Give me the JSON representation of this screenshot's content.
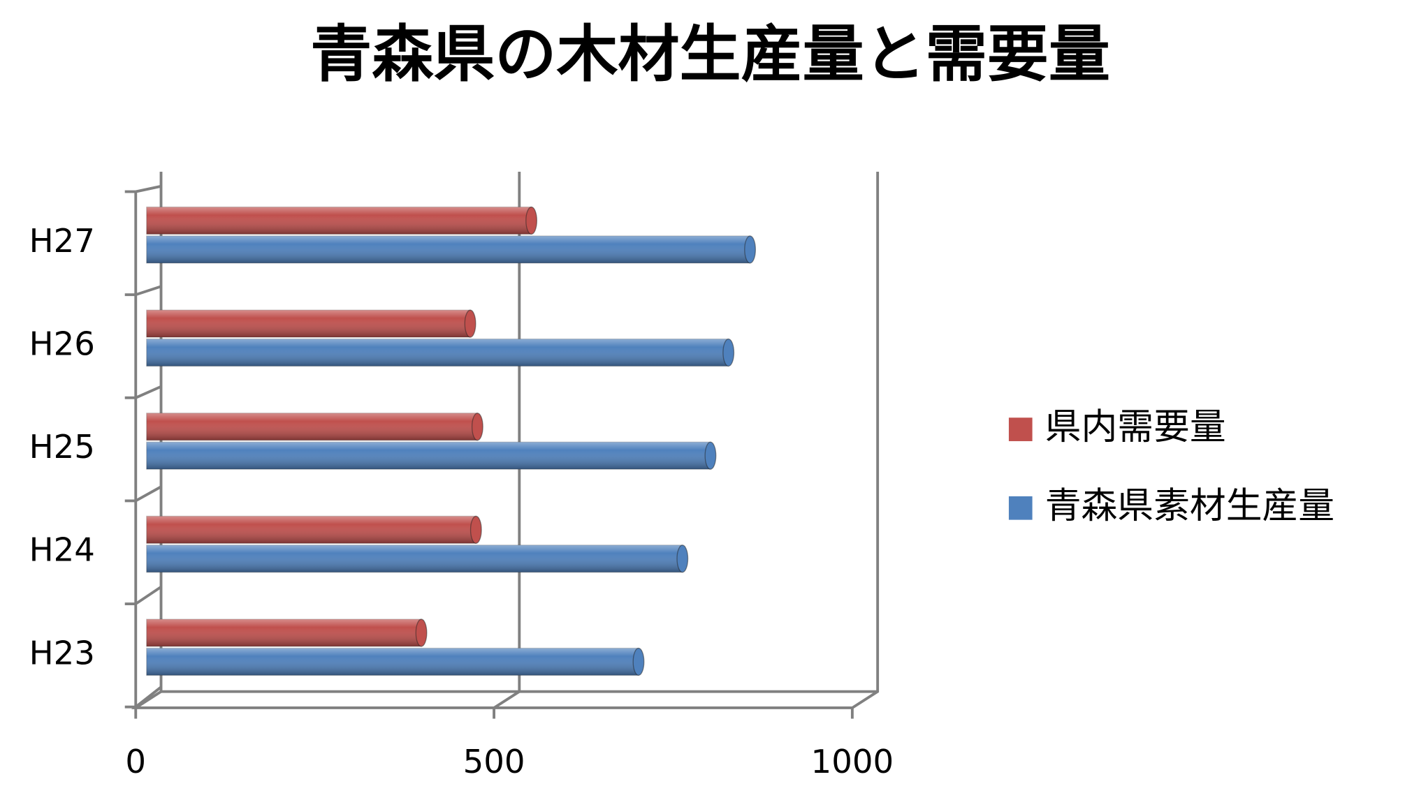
{
  "chart_data": {
    "type": "bar",
    "orientation": "horizontal",
    "title": "青森県の木材生産量と需要量",
    "categories": [
      "H23",
      "H24",
      "H25",
      "H26",
      "H27"
    ],
    "series": [
      {
        "name": "県内需要量",
        "color": "#c0504d",
        "values": [
          382,
          458,
          460,
          450,
          535
        ]
      },
      {
        "name": "青森県素材生産量",
        "color": "#4f81bd",
        "values": [
          684,
          745,
          784,
          809,
          839
        ]
      }
    ],
    "xlim": [
      0,
      1000
    ],
    "xticks": [
      0,
      500,
      1000
    ],
    "grid": true,
    "legend": "right"
  }
}
